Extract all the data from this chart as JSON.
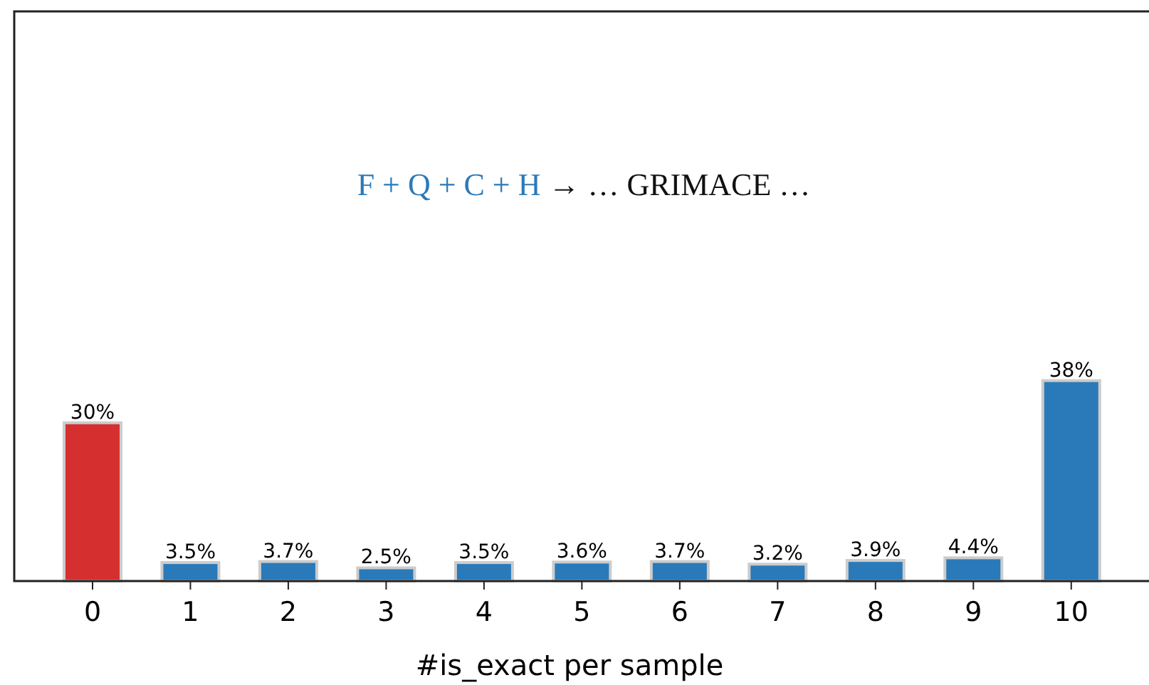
{
  "chart_data": {
    "type": "bar",
    "xlabel": "#is_exact per sample",
    "categories": [
      "0",
      "1",
      "2",
      "3",
      "4",
      "5",
      "6",
      "7",
      "8",
      "9",
      "10"
    ],
    "values": [
      30,
      3.5,
      3.7,
      2.5,
      3.5,
      3.6,
      3.7,
      3.2,
      3.9,
      4.4,
      38
    ],
    "colors": [
      "#d62f2f",
      "#2a7ab9",
      "#2a7ab9",
      "#2a7ab9",
      "#2a7ab9",
      "#2a7ab9",
      "#2a7ab9",
      "#2a7ab9",
      "#2a7ab9",
      "#2a7ab9",
      "#2a7ab9"
    ],
    "value_labels": [
      "30%",
      "3.5%",
      "3.7%",
      "2.5%",
      "3.5%",
      "3.6%",
      "3.7%",
      "3.2%",
      "3.9%",
      "4.4%",
      "38%"
    ],
    "ylim": [
      0,
      108
    ],
    "tick_labels": "x",
    "annotations": [
      "F + Q + C + H",
      "→ … GRIMACE …"
    ]
  }
}
